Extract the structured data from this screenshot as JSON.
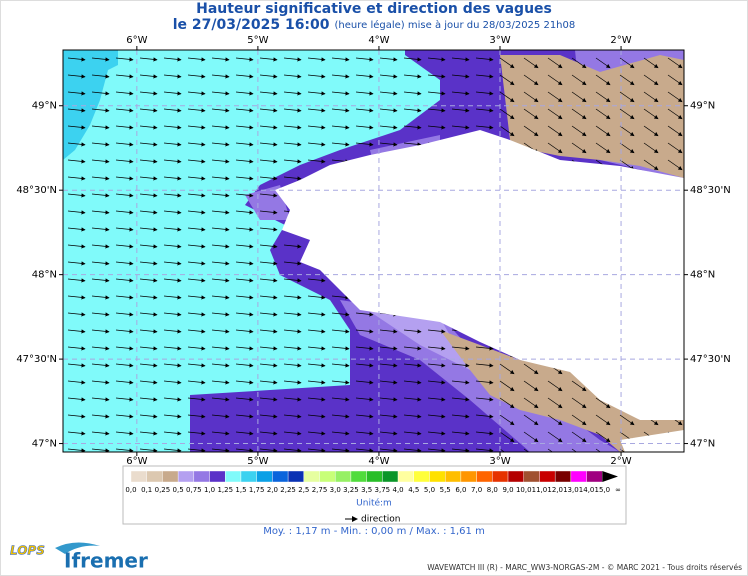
{
  "header": {
    "title": "Hauteur significative et direction des vagues",
    "date": "le 27/03/2025 16:00",
    "update": "(heure légale) mise à jour du 28/03/2025 21h08"
  },
  "map": {
    "xlim": [
      -6.61,
      -1.48
    ],
    "ylim": [
      46.95,
      49.33
    ],
    "xticks": [
      {
        "value": -6,
        "label": "6°W"
      },
      {
        "value": -5,
        "label": "5°W"
      },
      {
        "value": -4,
        "label": "4°W"
      },
      {
        "value": -3,
        "label": "3°W"
      },
      {
        "value": -2,
        "label": "2°W"
      }
    ],
    "yticks": [
      {
        "value": 49,
        "label": "49°N"
      },
      {
        "value": 48.5,
        "label": "48°30'N"
      },
      {
        "value": 48,
        "label": "48°N"
      },
      {
        "value": 47.5,
        "label": "47°30'N"
      },
      {
        "value": 47,
        "label": "47°N"
      }
    ],
    "grid": true
  },
  "colorbar": {
    "labels": [
      "0,0",
      "0,1",
      "0,25",
      "0,5",
      "0,75",
      "1,0",
      "1,25",
      "1,5",
      "1,75",
      "2,0",
      "2,25",
      "2,5",
      "2,75",
      "3,0",
      "3,25",
      "3,5",
      "3,75",
      "4,0",
      "4,5",
      "5,0",
      "5,5",
      "6,0",
      "7,0",
      "8,0",
      "9,0",
      "10,0",
      "11,0",
      "12,0",
      "13,0",
      "14,0",
      "15,0",
      "∞"
    ],
    "colors": [
      "#eadccd",
      "#dcc8b0",
      "#c8aa8c",
      "#b4a0f0",
      "#9478e4",
      "#5a32c8",
      "#80fafa",
      "#3cd2f0",
      "#0aa0e6",
      "#0a64dc",
      "#0a32b4",
      "#e6ffa0",
      "#c8ff78",
      "#96f064",
      "#50dc3c",
      "#28be28",
      "#0a9628",
      "#ffffa0",
      "#ffff3c",
      "#ffe100",
      "#ffbe00",
      "#ff9600",
      "#ff6400",
      "#e63200",
      "#b40000",
      "#a05030",
      "#c80000",
      "#780000",
      "#ff00ff",
      "#a00080",
      "#000000"
    ],
    "unit": "Unité:m"
  },
  "legend": {
    "direction": "direction"
  },
  "stats": "Moy. : 1,17 m   -   Min. : 0,00 m / Max. : 1,61 m",
  "footer": "WAVEWATCH III (R) - MARC_WW3-NORGAS-2M - © MARC 2021 - Tous droits réservés",
  "logos": {
    "lops": "LOPS",
    "ifremer": "Ifremer"
  }
}
